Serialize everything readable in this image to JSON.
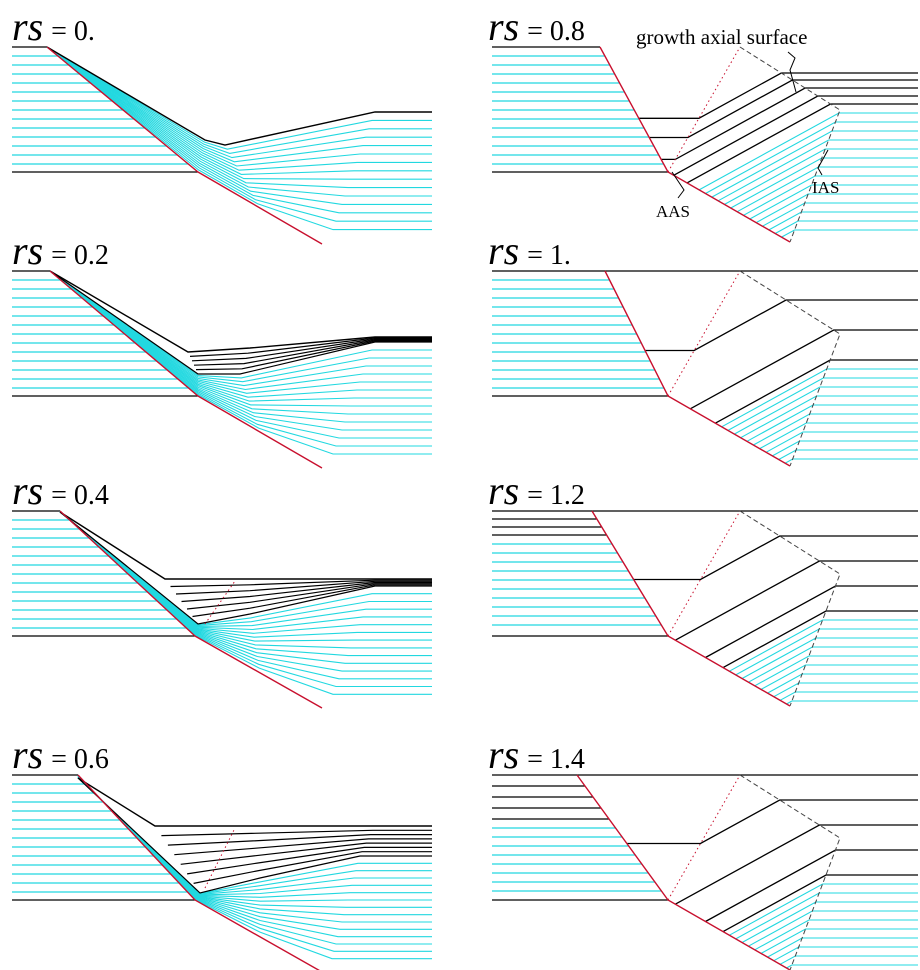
{
  "panels": [
    {
      "variable": "rs",
      "value": "= 0."
    },
    {
      "variable": "rs",
      "value": "= 0.2"
    },
    {
      "variable": "rs",
      "value": "= 0.4"
    },
    {
      "variable": "rs",
      "value": "= 0.6"
    },
    {
      "variable": "rs",
      "value": "= 0.8"
    },
    {
      "variable": "rs",
      "value": "= 1."
    },
    {
      "variable": "rs",
      "value": "= 1.2"
    },
    {
      "variable": "rs",
      "value": "= 1.4"
    }
  ],
  "annotations": {
    "growth_axial_surface": "growth axial surface",
    "aas": "AAS",
    "ias": "IAS"
  }
}
